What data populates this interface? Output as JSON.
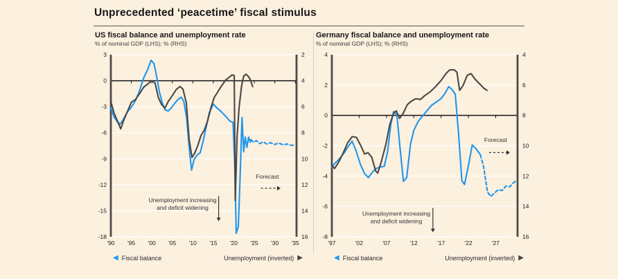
{
  "page": {
    "title": "Unprecedented ‘peacetime’ fiscal stimulus"
  },
  "legend": {
    "fiscal": "Fiscal balance",
    "unemployment": "Unemployment (inverted)"
  },
  "colors": {
    "fiscal_line": "#1e96ee",
    "unemployment_line": "#4a4744",
    "background": "#fcf0df",
    "zero_line": "#141414",
    "spine": "#4e4b48"
  },
  "chart_data": [
    {
      "type": "line",
      "region": "US",
      "title": "US fiscal balance and unemployment rate",
      "subtitle": "% of nominal GDP (LHS); % (RHS)",
      "lhs_axis": {
        "label": "% of nominal GDP",
        "min": -18,
        "max": 3,
        "step": 3
      },
      "rhs_axis": {
        "label": "%",
        "min": 2,
        "max": 16,
        "step": 2,
        "inverted": true
      },
      "x_axis": {
        "min": 1990,
        "max": 2035.3,
        "tick_start": 1990,
        "tick_end": 2035,
        "tick_step": 5
      },
      "series": [
        {
          "name": "Fiscal balance (LHS)",
          "axis": "lhs",
          "color": "fiscal_line",
          "forecast_from": 2024.2,
          "points": [
            [
              1990,
              -3.1
            ],
            [
              1990.8,
              -4.2
            ],
            [
              1991.6,
              -4.75
            ],
            [
              1992.3,
              -5.0
            ],
            [
              1993,
              -4.5
            ],
            [
              1994,
              -3.6
            ],
            [
              1995,
              -3.05
            ],
            [
              1996,
              -2.3
            ],
            [
              1997,
              -1.15
            ],
            [
              1998,
              0.3
            ],
            [
              1999,
              1.3
            ],
            [
              1999.8,
              2.35
            ],
            [
              2000.5,
              2.0
            ],
            [
              2001,
              0.9
            ],
            [
              2001.8,
              -1.2
            ],
            [
              2002.5,
              -2.5
            ],
            [
              2003.2,
              -3.35
            ],
            [
              2004,
              -3.5
            ],
            [
              2004.8,
              -3.1
            ],
            [
              2005.6,
              -2.6
            ],
            [
              2006.4,
              -2.15
            ],
            [
              2007.2,
              -1.9
            ],
            [
              2007.8,
              -2.4
            ],
            [
              2008.5,
              -4.3
            ],
            [
              2009.2,
              -8.2
            ],
            [
              2009.7,
              -10.3
            ],
            [
              2010.3,
              -9.1
            ],
            [
              2011,
              -8.6
            ],
            [
              2011.8,
              -8.3
            ],
            [
              2012.5,
              -7.0
            ],
            [
              2013.3,
              -5.3
            ],
            [
              2014,
              -3.7
            ],
            [
              2015,
              -2.7
            ],
            [
              2016,
              -3.2
            ],
            [
              2017,
              -3.6
            ],
            [
              2018,
              -4.1
            ],
            [
              2019,
              -4.65
            ],
            [
              2019.8,
              -4.8
            ],
            [
              2020.2,
              -9.5
            ],
            [
              2020.6,
              -17.6
            ],
            [
              2021.1,
              -16.8
            ],
            [
              2021.5,
              -11.5
            ],
            [
              2022,
              -4.25
            ],
            [
              2022.4,
              -8.2
            ],
            [
              2022.8,
              -6.5
            ],
            [
              2023.2,
              -7.7
            ],
            [
              2023.6,
              -6.5
            ],
            [
              2024,
              -7.1
            ],
            [
              2024.2,
              -6.8
            ],
            [
              2024.8,
              -7.1
            ],
            [
              2025.5,
              -6.9
            ],
            [
              2026.3,
              -7.25
            ],
            [
              2027.2,
              -7.05
            ],
            [
              2028,
              -7.3
            ],
            [
              2029,
              -7.15
            ],
            [
              2030,
              -7.35
            ],
            [
              2031,
              -7.2
            ],
            [
              2032,
              -7.4
            ],
            [
              2033,
              -7.3
            ],
            [
              2034,
              -7.45
            ],
            [
              2035,
              -7.4
            ]
          ]
        },
        {
          "name": "Unemployment rate (RHS, inverted)",
          "axis": "rhs",
          "color": "unemployment_line",
          "points": [
            [
              1990,
              5.6
            ],
            [
              1990.8,
              6.5
            ],
            [
              1991.6,
              7.1
            ],
            [
              1992.4,
              7.7
            ],
            [
              1993.2,
              7.0
            ],
            [
              1994,
              6.4
            ],
            [
              1995,
              5.65
            ],
            [
              1996,
              5.45
            ],
            [
              1997,
              5.0
            ],
            [
              1998,
              4.5
            ],
            [
              1999,
              4.25
            ],
            [
              2000,
              4.0
            ],
            [
              2000.8,
              4.2
            ],
            [
              2001.6,
              5.3
            ],
            [
              2002.4,
              5.85
            ],
            [
              2003.2,
              6.1
            ],
            [
              2004,
              5.6
            ],
            [
              2005,
              5.15
            ],
            [
              2006,
              4.65
            ],
            [
              2006.9,
              4.45
            ],
            [
              2007.6,
              4.65
            ],
            [
              2008.4,
              5.7
            ],
            [
              2009.1,
              8.5
            ],
            [
              2009.8,
              9.9
            ],
            [
              2010.4,
              9.6
            ],
            [
              2011.2,
              9.0
            ],
            [
              2012,
              8.2
            ],
            [
              2012.8,
              7.8
            ],
            [
              2013.6,
              7.1
            ],
            [
              2014.4,
              6.1
            ],
            [
              2015.2,
              5.3
            ],
            [
              2016,
              4.9
            ],
            [
              2017,
              4.4
            ],
            [
              2018,
              3.95
            ],
            [
              2018.8,
              3.75
            ],
            [
              2019.6,
              3.55
            ],
            [
              2020.1,
              3.6
            ],
            [
              2020.35,
              13.2
            ],
            [
              2020.8,
              8.3
            ],
            [
              2021.3,
              6.0
            ],
            [
              2021.9,
              4.4
            ],
            [
              2022.4,
              3.65
            ],
            [
              2023,
              3.5
            ],
            [
              2023.6,
              3.7
            ],
            [
              2024,
              3.9
            ],
            [
              2024.6,
              4.45
            ]
          ]
        }
      ],
      "annotations": {
        "note_lines": [
          "Unemployment increasing",
          "and deficit widening"
        ],
        "note_pos": {
          "x": 2007.5,
          "y": -14.0
        },
        "note_arrow": {
          "x": 2016.3,
          "y1": -13.3,
          "y2": -16.2
        },
        "forecast_label": "Forecast",
        "forecast_pos": {
          "x": 2028.2,
          "y": -11.3
        },
        "forecast_arrow": {
          "x1": 2026.6,
          "x2": 2031.4,
          "y": -12.4
        }
      }
    },
    {
      "type": "line",
      "region": "Germany",
      "title": "Germany fiscal balance and unemployment rate",
      "subtitle": "% of nominal GDP (LHS); % (RHS)",
      "lhs_axis": {
        "label": "% of nominal GDP",
        "min": -8,
        "max": 4,
        "step": 2
      },
      "rhs_axis": {
        "label": "%",
        "min": 4,
        "max": 16,
        "step": 2,
        "inverted": true
      },
      "x_axis": {
        "min": 1997,
        "max": 2031.0,
        "tick_start": 1997,
        "tick_end": 2027,
        "tick_step": 5
      },
      "series": [
        {
          "name": "Fiscal balance (LHS)",
          "axis": "lhs",
          "color": "fiscal_line",
          "forecast_from": 2024.2,
          "points": [
            [
              1997,
              -3.4
            ],
            [
              1997.6,
              -3.15
            ],
            [
              1998.4,
              -2.85
            ],
            [
              1999.2,
              -2.5
            ],
            [
              2000,
              -2.05
            ],
            [
              2000.7,
              -1.7
            ],
            [
              2001.4,
              -2.3
            ],
            [
              2002.2,
              -3.2
            ],
            [
              2003,
              -3.85
            ],
            [
              2003.7,
              -4.1
            ],
            [
              2004.4,
              -3.75
            ],
            [
              2005.1,
              -3.5
            ],
            [
              2005.9,
              -3.4
            ],
            [
              2006.6,
              -3.35
            ],
            [
              2007.2,
              -2.4
            ],
            [
              2007.8,
              -0.6
            ],
            [
              2008.3,
              0.25
            ],
            [
              2008.9,
              0.05
            ],
            [
              2009.5,
              -2.2
            ],
            [
              2010.1,
              -4.35
            ],
            [
              2010.7,
              -4.1
            ],
            [
              2011.4,
              -1.9
            ],
            [
              2012,
              -1.0
            ],
            [
              2012.8,
              -0.4
            ],
            [
              2013.6,
              -0.05
            ],
            [
              2014.4,
              0.3
            ],
            [
              2015.2,
              0.65
            ],
            [
              2016,
              0.85
            ],
            [
              2017,
              1.1
            ],
            [
              2017.8,
              1.5
            ],
            [
              2018.4,
              1.9
            ],
            [
              2019,
              1.7
            ],
            [
              2019.6,
              1.4
            ],
            [
              2020.2,
              -1.2
            ],
            [
              2020.8,
              -4.3
            ],
            [
              2021.3,
              -4.55
            ],
            [
              2022,
              -3.3
            ],
            [
              2022.7,
              -1.95
            ],
            [
              2023.4,
              -2.2
            ],
            [
              2024.2,
              -2.6
            ],
            [
              2024.8,
              -3.4
            ],
            [
              2025.5,
              -5.05
            ],
            [
              2026.1,
              -5.35
            ],
            [
              2026.8,
              -5.1
            ],
            [
              2027.5,
              -4.9
            ],
            [
              2028.2,
              -4.95
            ],
            [
              2028.9,
              -4.65
            ],
            [
              2029.6,
              -4.7
            ],
            [
              2030.2,
              -4.45
            ],
            [
              2030.6,
              -4.35
            ]
          ]
        },
        {
          "name": "Unemployment rate (RHS, inverted)",
          "axis": "rhs",
          "color": "unemployment_line",
          "points": [
            [
              1997,
              11.3
            ],
            [
              1997.5,
              11.5
            ],
            [
              1998.3,
              11.05
            ],
            [
              1999.1,
              10.45
            ],
            [
              1999.9,
              9.8
            ],
            [
              2000.7,
              9.4
            ],
            [
              2001.5,
              9.45
            ],
            [
              2002.3,
              10.0
            ],
            [
              2003,
              10.55
            ],
            [
              2003.6,
              10.45
            ],
            [
              2004.3,
              10.75
            ],
            [
              2005,
              11.65
            ],
            [
              2005.4,
              11.8
            ],
            [
              2006.1,
              11.0
            ],
            [
              2006.9,
              9.9
            ],
            [
              2007.6,
              8.6
            ],
            [
              2008.3,
              7.85
            ],
            [
              2008.8,
              7.7
            ],
            [
              2009.4,
              8.2
            ],
            [
              2010,
              7.9
            ],
            [
              2010.8,
              7.3
            ],
            [
              2011.6,
              7.05
            ],
            [
              2012.4,
              6.9
            ],
            [
              2013.2,
              6.95
            ],
            [
              2014,
              6.7
            ],
            [
              2015,
              6.45
            ],
            [
              2016,
              6.1
            ],
            [
              2017,
              5.7
            ],
            [
              2018,
              5.2
            ],
            [
              2018.6,
              5.0
            ],
            [
              2019.4,
              5.0
            ],
            [
              2019.9,
              5.15
            ],
            [
              2020.4,
              6.35
            ],
            [
              2021,
              6.05
            ],
            [
              2021.8,
              5.35
            ],
            [
              2022.5,
              5.25
            ],
            [
              2023.2,
              5.6
            ],
            [
              2024,
              5.9
            ],
            [
              2024.8,
              6.2
            ],
            [
              2025.4,
              6.35
            ]
          ]
        }
      ],
      "annotations": {
        "note_lines": [
          "Unemployment increasing",
          "and deficit widening"
        ],
        "note_pos": {
          "x": 2008.8,
          "y": -6.6
        },
        "note_arrow": {
          "x": 2015.5,
          "y1": -6.1,
          "y2": -7.7
        },
        "forecast_label": "Forecast",
        "forecast_pos": {
          "x": 2027.0,
          "y": -1.75
        },
        "forecast_arrow": {
          "x1": 2025.8,
          "x2": 2029.6,
          "y": -2.45
        }
      }
    }
  ]
}
